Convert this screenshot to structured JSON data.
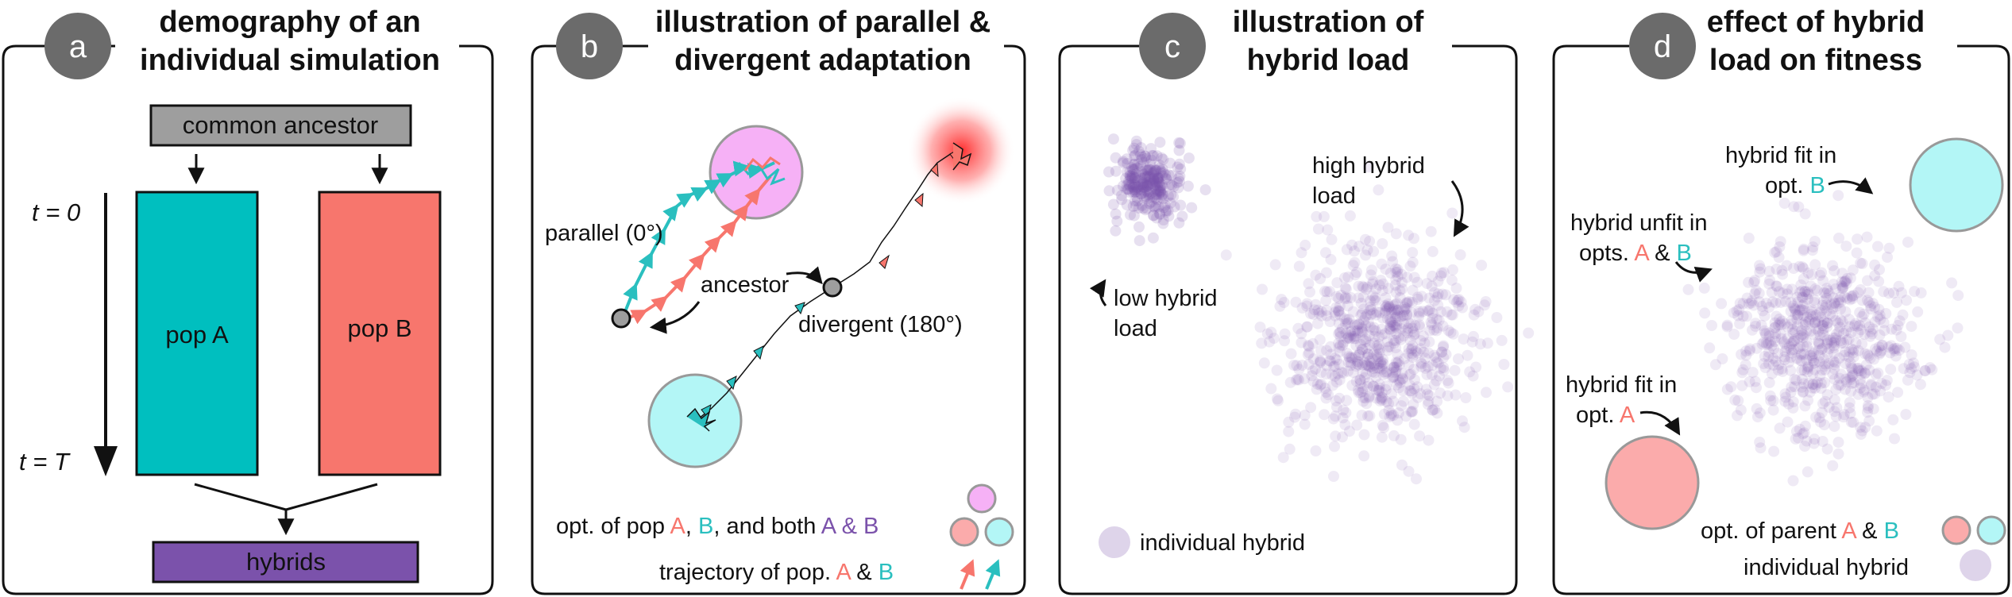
{
  "panels": [
    {
      "badge": "a",
      "title": [
        "demography of an",
        "individual simulation"
      ]
    },
    {
      "badge": "b",
      "title": [
        "illustration of parallel &",
        "divergent adaptation"
      ]
    },
    {
      "badge": "c",
      "title": [
        "illustration of",
        "hybrid load"
      ]
    },
    {
      "badge": "d",
      "title": [
        "effect of hybrid",
        "load on fitness"
      ]
    }
  ],
  "a": {
    "ancestor": "common ancestor",
    "t0": "t = 0",
    "tT": "t = T",
    "popA": "pop A",
    "popB": "pop B",
    "hybrids": "hybrids"
  },
  "b": {
    "parallel": "parallel (0°)",
    "ancestor": "ancestor",
    "divergent": "divergent (180°)",
    "legend1": {
      "pre": "opt. of pop ",
      "A": "A",
      ",": ", ",
      "B": "B",
      "mid": ", and both ",
      "AB": "A & B"
    },
    "legend2": {
      "pre": "trajectory of pop. ",
      "A": "A",
      "amp": " & ",
      "B": "B"
    }
  },
  "c": {
    "low": [
      "low hybrid",
      "load"
    ],
    "high": [
      "high hybrid",
      "load"
    ],
    "legend": "individual hybrid"
  },
  "d": {
    "fitB": [
      "hybrid fit in",
      "opt. "
    ],
    "fitB_letter": "B",
    "unfit": [
      "hybrid unfit in",
      "opts. "
    ],
    "unfit_A": "A",
    "unfit_amp": " & ",
    "unfit_B": "B",
    "fitA": [
      "hybrid fit in",
      "opt. "
    ],
    "fitA_letter": "A",
    "legend1": {
      "pre": "opt. of parent ",
      "A": "A",
      "amp": " & ",
      "B": "B"
    },
    "legend2": "individual hybrid"
  },
  "colors": {
    "popA": "#2abfbf",
    "popB": "#f7766d",
    "hybrid": "#7b52ab",
    "optA_fill": "#b3f6f6",
    "optB_fill": "#fbabab",
    "optBoth_fill": "#f6b1f6",
    "badge": "#6b6b6b",
    "ancestor_box": "#9e9e9e"
  }
}
